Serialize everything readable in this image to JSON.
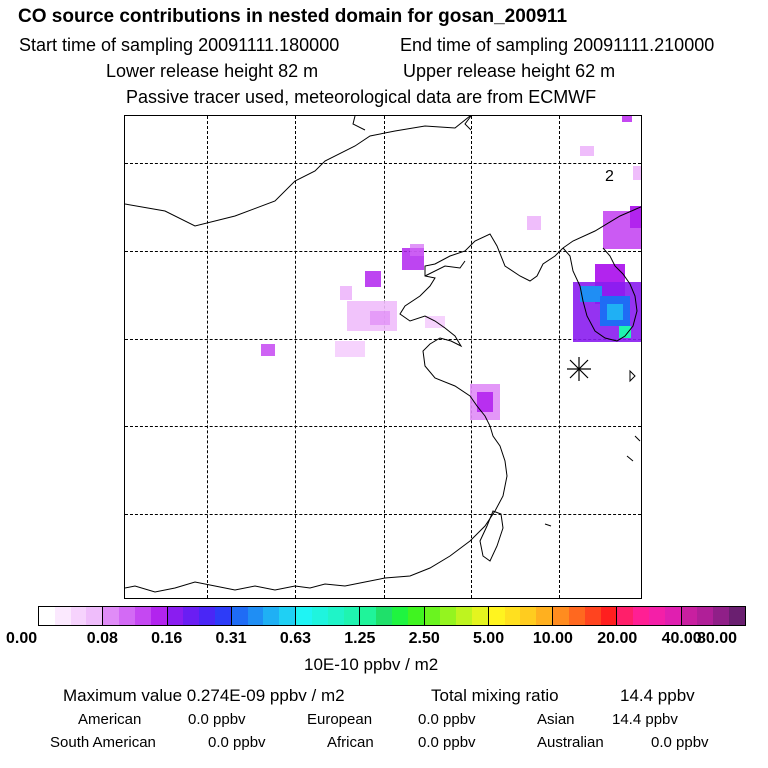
{
  "header": {
    "title": "CO  source contributions in nested domain for gosan_200911",
    "start_time": "Start time of sampling 20091111.180000",
    "end_time": "End time of sampling 20091111.210000",
    "lower_height": "Lower release height   82 m",
    "upper_height": "Upper release height   62 m",
    "subtitle": "Passive tracer used, meteorological data are from ECMWF"
  },
  "map": {
    "receptor_label": "2",
    "receptor_marker": "asterisk-icon"
  },
  "colorbar": {
    "unit_label": "10E-10 ppbv / m2",
    "tick_labels": [
      "0.00",
      "0.08",
      "0.16",
      "0.31",
      "0.63",
      "1.25",
      "2.50",
      "5.00",
      "10.00",
      "20.00",
      "40.00",
      "80.00"
    ],
    "colors": [
      [
        "#ffffff",
        "#fbe9fe",
        "#f6d3fd",
        "#efbdfb"
      ],
      [
        "#e08cf7",
        "#d36af5",
        "#c548f2",
        "#b224ee"
      ],
      [
        "#8a1df0",
        "#6a1ef3",
        "#4a26f6",
        "#2d3cf8"
      ],
      [
        "#1f6cf5",
        "#1f8ef4",
        "#1fb0f4",
        "#1fd0f4"
      ],
      [
        "#1ff4f4",
        "#1ff4de",
        "#1ff4c8",
        "#1ff4b0"
      ],
      [
        "#1ff49a",
        "#1fe06a",
        "#1ff440",
        "#40f420"
      ],
      [
        "#6af41f",
        "#94f41f",
        "#bef41f",
        "#e4f41f"
      ],
      [
        "#fff41f",
        "#ffe01f",
        "#ffcc1f",
        "#ffb01f"
      ],
      [
        "#ff8c1f",
        "#ff681f",
        "#ff441f",
        "#ff1f1f"
      ],
      [
        "#ff1f6a",
        "#ff1f94",
        "#f41fa8",
        "#e01fb0"
      ],
      [
        "#c81fa0",
        "#b01f98",
        "#901f88",
        "#6a1f70"
      ]
    ]
  },
  "stats": {
    "max_label": "Maximum value  0.274E-09 ppbv / m2",
    "total_label": "Total mixing ratio",
    "total_value": "14.4 ppbv",
    "american_label": "American",
    "american_value": "0.0 ppbv",
    "european_label": "European",
    "european_value": "0.0 ppbv",
    "asian_label": "Asian",
    "asian_value": "14.4 ppbv",
    "south_american_label": "South American",
    "south_american_value": "0.0 ppbv",
    "african_label": "African",
    "african_value": "0.0 ppbv",
    "australian_label": "Australian",
    "australian_value": "0.0 ppbv"
  }
}
